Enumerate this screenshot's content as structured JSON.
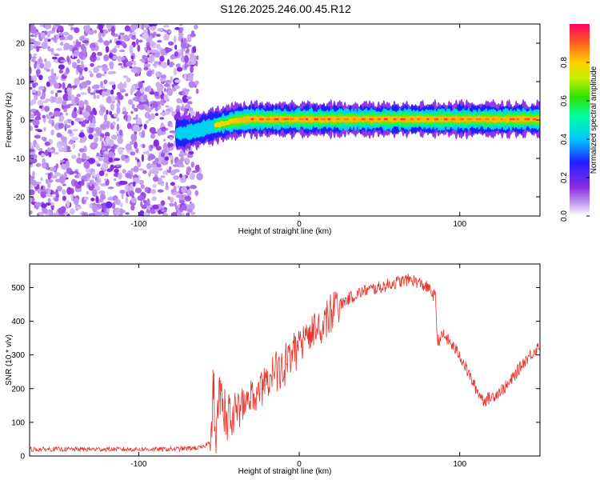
{
  "title": "S126.2025.246.00.45.R12",
  "colors": {
    "snr_line": "#e8322a",
    "axis": "#000000",
    "background": "#ffffff"
  },
  "chart_data": [
    {
      "type": "heatmap",
      "xlabel": "Height of straight line (km)",
      "ylabel": "Frequency (Hz)",
      "xlim": [
        -168,
        150
      ],
      "ylim": [
        -25,
        25
      ],
      "xticks": [
        -100,
        0,
        100
      ],
      "xtick_labels": [
        "-100",
        "0",
        "100"
      ],
      "yticks": [
        -20,
        -10,
        0,
        10,
        20
      ],
      "ytick_labels": [
        "-20",
        "-10",
        "0",
        "10",
        "20"
      ],
      "colorbar": {
        "label": "Normalized spectral amplitude",
        "range": [
          0,
          1
        ],
        "ticks": [
          0.0,
          0.2,
          0.4,
          0.6,
          0.8
        ],
        "tick_labels": [
          "0.0",
          "0.2",
          "0.4",
          "0.6",
          "0.8"
        ],
        "colormap": "rainbow"
      },
      "features": {
        "noise_region_x": [
          -168,
          -66
        ],
        "noise_amplitude": 0.1,
        "signal_start_x": -66,
        "signal_ridge": [
          {
            "x": -76,
            "f": -3.5
          },
          {
            "x": -66,
            "f": -3.0
          },
          {
            "x": -58,
            "f": -2.0
          },
          {
            "x": -50,
            "f": -1.2
          },
          {
            "x": -40,
            "f": -0.2
          },
          {
            "x": -30,
            "f": 0.2
          },
          {
            "x": 0,
            "f": 0.2
          },
          {
            "x": 50,
            "f": 0.2
          },
          {
            "x": 100,
            "f": 0.2
          },
          {
            "x": 150,
            "f": 0.2
          }
        ],
        "ridge_peak_amplitude": 0.95
      }
    },
    {
      "type": "line",
      "xlabel": "Height of straight line (km)",
      "ylabel": "SNR (10 * v/v)",
      "xlim": [
        -168,
        150
      ],
      "ylim": [
        0,
        570
      ],
      "xticks": [
        -100,
        0,
        100
      ],
      "xtick_labels": [
        "-100",
        "0",
        "100"
      ],
      "yticks": [
        0,
        100,
        200,
        300,
        400,
        500
      ],
      "ytick_labels": [
        "0",
        "100",
        "200",
        "300",
        "400",
        "500"
      ],
      "series": [
        {
          "x": [
            -168,
            -140,
            -110,
            -80,
            -60,
            -52,
            -50,
            -45,
            -40,
            -30,
            -20,
            -10,
            0,
            10,
            20,
            30,
            40,
            50,
            60,
            70,
            80,
            85,
            86,
            90,
            100,
            110,
            115,
            120,
            130,
            140,
            150
          ],
          "y": [
            20,
            20,
            20,
            20,
            25,
            60,
            200,
            120,
            130,
            180,
            230,
            270,
            330,
            380,
            430,
            465,
            490,
            500,
            515,
            525,
            500,
            470,
            340,
            360,
            300,
            200,
            165,
            175,
            210,
            280,
            330
          ]
        }
      ]
    }
  ]
}
